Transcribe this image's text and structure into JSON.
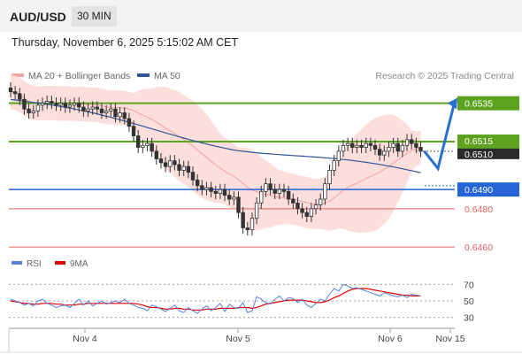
{
  "header": {
    "symbol": "AUD/USD",
    "timeframe": "30 MIN"
  },
  "datetime": "Thursday, November 6, 2025 5:15:02 AM CET",
  "legend": {
    "bollinger": {
      "label": "MA 20 + Bollinger Bands",
      "color": "#f4a3a3"
    },
    "ma50": {
      "label": "MA 50",
      "color": "#2f5597"
    }
  },
  "credit": "Research © 2025 Trading Central",
  "rsi_legend": {
    "rsi": {
      "label": "RSI",
      "color": "#5a7fd6"
    },
    "ma9": {
      "label": "9MA",
      "color": "#e00000"
    }
  },
  "chart_data": [
    {
      "type": "candlestick",
      "ylim": [
        0.6455,
        0.6545
      ],
      "x_ticks": [
        "Nov 4",
        "Nov 5",
        "Nov 6",
        "Nov 15"
      ],
      "horizontal_lines": [
        {
          "value": 0.6535,
          "label": "0.6535",
          "style": "resistance",
          "color": "#5ea320"
        },
        {
          "value": 0.6515,
          "label": "0.6515",
          "style": "resistance",
          "color": "#5ea320"
        },
        {
          "value": 0.649,
          "label": "0.6490",
          "style": "pivot",
          "color": "#2563d6"
        },
        {
          "value": 0.648,
          "label": "0.6480",
          "style": "support",
          "color": "#e06060"
        },
        {
          "value": 0.646,
          "label": "0.6460",
          "style": "support",
          "color": "#e06060"
        }
      ],
      "last_price": {
        "value": 0.651,
        "label": "0.6510"
      },
      "closes": [
        0.6541,
        0.654,
        0.6537,
        0.6532,
        0.653,
        0.6531,
        0.6534,
        0.6535,
        0.6536,
        0.6535,
        0.6534,
        0.6535,
        0.6533,
        0.6534,
        0.6535,
        0.6533,
        0.6531,
        0.6532,
        0.6533,
        0.6532,
        0.653,
        0.6531,
        0.6532,
        0.6528,
        0.653,
        0.6527,
        0.6523,
        0.6518,
        0.6512,
        0.6513,
        0.6514,
        0.651,
        0.6506,
        0.6504,
        0.6502,
        0.6505,
        0.6503,
        0.65,
        0.6502,
        0.6499,
        0.6495,
        0.6492,
        0.649,
        0.6491,
        0.6489,
        0.6488,
        0.649,
        0.6487,
        0.6485,
        0.6486,
        0.6478,
        0.647,
        0.6469,
        0.6475,
        0.6483,
        0.6489,
        0.6493,
        0.649,
        0.6488,
        0.649,
        0.6489,
        0.6485,
        0.6483,
        0.648,
        0.6478,
        0.6476,
        0.648,
        0.6482,
        0.6485,
        0.6493,
        0.65,
        0.6505,
        0.651,
        0.6513,
        0.6514,
        0.6512,
        0.6513,
        0.6512,
        0.6514,
        0.6513,
        0.6511,
        0.6508,
        0.651,
        0.6512,
        0.6514,
        0.651,
        0.6513,
        0.6516,
        0.6514,
        0.6512,
        0.651
      ],
      "ma50_start_end": [
        0.6537,
        0.6498
      ],
      "forecast_path": [
        0.651,
        0.6501,
        0.6536
      ]
    },
    {
      "type": "line",
      "name": "RSI",
      "ylim": [
        20,
        80
      ],
      "y_ticks": [
        70,
        50,
        30
      ],
      "rsi": [
        52,
        50,
        48,
        45,
        47,
        44,
        50,
        52,
        47,
        45,
        42,
        44,
        45,
        42,
        47,
        52,
        45,
        50,
        44,
        47,
        50,
        46,
        48,
        50,
        48,
        52,
        47,
        45,
        42,
        41,
        38,
        45,
        43,
        40,
        37,
        41,
        45,
        38,
        36,
        42,
        38,
        35,
        40,
        44,
        38,
        42,
        47,
        37,
        46,
        42,
        41,
        48,
        36,
        38,
        55,
        52,
        48,
        46,
        52,
        56,
        50,
        54,
        53,
        48,
        52,
        45,
        42,
        47,
        52,
        50,
        58,
        65,
        62,
        70,
        68,
        65,
        66,
        64,
        62,
        60,
        58,
        56,
        60,
        58,
        56,
        55,
        57,
        54,
        58,
        57,
        56
      ],
      "ma9": [
        50,
        49,
        48,
        47,
        47,
        46,
        46,
        47,
        47,
        47,
        46,
        46,
        45,
        45,
        45,
        46,
        46,
        47,
        47,
        47,
        47,
        47,
        47,
        47,
        47,
        47,
        47,
        47,
        46,
        45,
        43,
        42,
        42,
        41,
        40,
        40,
        41,
        41,
        40,
        40,
        39,
        39,
        39,
        40,
        40,
        40,
        41,
        41,
        41,
        41,
        42,
        42,
        42,
        41,
        42,
        44,
        46,
        47,
        48,
        49,
        50,
        51,
        51,
        51,
        51,
        50,
        49,
        48,
        48,
        49,
        51,
        54,
        56,
        59,
        62,
        64,
        65,
        65,
        65,
        64,
        63,
        62,
        61,
        60,
        59,
        58,
        57,
        57,
        56,
        56,
        56
      ]
    }
  ]
}
